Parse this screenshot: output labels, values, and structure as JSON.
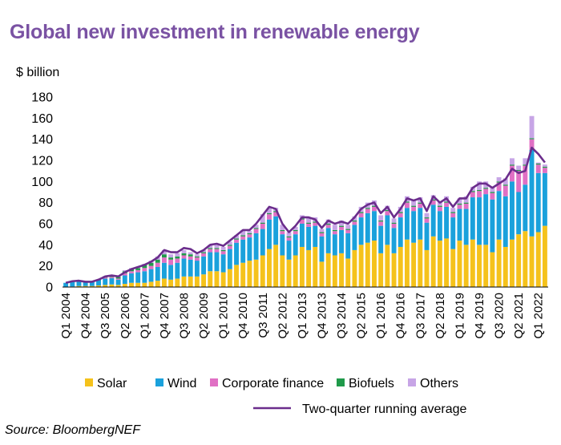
{
  "chart_data": {
    "type": "bar",
    "stacked": true,
    "title": "Global new investment in renewable energy",
    "ylabel": "$ billion",
    "ylim": [
      0,
      180
    ],
    "yticks": [
      0,
      20,
      40,
      60,
      80,
      100,
      120,
      140,
      160,
      180
    ],
    "grid": false,
    "legend_position": "bottom",
    "source": "Source: BloombergNEF",
    "xtick_labels": [
      "Q1 2004",
      "Q4 2004",
      "Q3 2005",
      "Q2 2006",
      "Q1 2007",
      "Q4 2007",
      "Q3 2008",
      "Q2 2009",
      "Q1 2010",
      "Q4 2010",
      "Q3 2011",
      "Q2 2012",
      "Q1 2013",
      "Q4 2013",
      "Q3 2014",
      "Q2 2015",
      "Q1 2016",
      "Q4 2016",
      "Q3 2017",
      "Q2 2018",
      "Q1 2019",
      "Q4 2019",
      "Q3 2020",
      "Q2 2021",
      "Q1 2022"
    ],
    "categories": [
      "Q1 2004",
      "Q2 2004",
      "Q3 2004",
      "Q4 2004",
      "Q1 2005",
      "Q2 2005",
      "Q3 2005",
      "Q4 2005",
      "Q1 2006",
      "Q2 2006",
      "Q3 2006",
      "Q4 2006",
      "Q1 2007",
      "Q2 2007",
      "Q3 2007",
      "Q4 2007",
      "Q1 2008",
      "Q2 2008",
      "Q3 2008",
      "Q4 2008",
      "Q1 2009",
      "Q2 2009",
      "Q3 2009",
      "Q4 2009",
      "Q1 2010",
      "Q2 2010",
      "Q3 2010",
      "Q4 2010",
      "Q1 2011",
      "Q2 2011",
      "Q3 2011",
      "Q4 2011",
      "Q1 2012",
      "Q2 2012",
      "Q3 2012",
      "Q4 2012",
      "Q1 2013",
      "Q2 2013",
      "Q3 2013",
      "Q4 2013",
      "Q1 2014",
      "Q2 2014",
      "Q3 2014",
      "Q4 2014",
      "Q1 2015",
      "Q2 2015",
      "Q3 2015",
      "Q4 2015",
      "Q1 2016",
      "Q2 2016",
      "Q3 2016",
      "Q4 2016",
      "Q1 2017",
      "Q2 2017",
      "Q3 2017",
      "Q4 2017",
      "Q1 2018",
      "Q2 2018",
      "Q3 2018",
      "Q4 2018",
      "Q1 2019",
      "Q2 2019",
      "Q3 2019",
      "Q4 2019",
      "Q1 2020",
      "Q2 2020",
      "Q3 2020",
      "Q4 2020",
      "Q1 2021",
      "Q2 2021",
      "Q3 2021",
      "Q4 2021",
      "Q1 2022",
      "Q2 2022"
    ],
    "series": [
      {
        "name": "Solar",
        "color": "#f5c21b",
        "values": [
          0,
          0.5,
          1,
          1,
          1,
          1.5,
          2,
          2.5,
          2,
          3,
          4,
          4,
          4,
          5,
          6,
          8,
          7,
          8,
          10,
          10,
          10,
          12,
          15,
          15,
          14,
          17,
          21,
          23,
          25,
          26,
          30,
          36,
          40,
          30,
          26,
          30,
          38,
          35,
          38,
          24,
          32,
          30,
          32,
          27,
          35,
          40,
          42,
          44,
          32,
          40,
          32,
          38,
          45,
          42,
          45,
          35,
          48,
          44,
          46,
          36,
          44,
          40,
          45,
          40,
          40,
          33,
          45,
          38,
          45,
          50,
          53,
          48,
          52,
          58
        ]
      },
      {
        "name": "Wind",
        "color": "#1aa1dc",
        "values": [
          4,
          5,
          4,
          4,
          4,
          5,
          6,
          6,
          5,
          8,
          9,
          10,
          11,
          12,
          13,
          15,
          14,
          15,
          17,
          16,
          15,
          17,
          18,
          18,
          17,
          19,
          21,
          22,
          22,
          25,
          25,
          28,
          27,
          20,
          18,
          20,
          22,
          22,
          20,
          24,
          24,
          20,
          22,
          24,
          24,
          26,
          28,
          28,
          26,
          28,
          24,
          28,
          30,
          30,
          30,
          26,
          30,
          28,
          30,
          30,
          30,
          34,
          40,
          45,
          48,
          50,
          46,
          48,
          55,
          40,
          44,
          82,
          56,
          50
        ]
      },
      {
        "name": "Corporate finance",
        "color": "#e070c4",
        "values": [
          0,
          0,
          0,
          0,
          0,
          0,
          1,
          1,
          1,
          2,
          2,
          2,
          3,
          3,
          4,
          5,
          5,
          4,
          3,
          3,
          3,
          3,
          3,
          3,
          3,
          3,
          3,
          3,
          3,
          4,
          5,
          5,
          4,
          3,
          3,
          3,
          4,
          3,
          3,
          3,
          3,
          3,
          3,
          3,
          3,
          4,
          4,
          4,
          4,
          4,
          4,
          4,
          5,
          4,
          4,
          4,
          4,
          4,
          4,
          4,
          4,
          5,
          5,
          6,
          5,
          6,
          8,
          10,
          15,
          20,
          18,
          10,
          8,
          5
        ]
      },
      {
        "name": "Biofuels",
        "color": "#1f9a4a",
        "values": [
          0,
          0,
          0,
          0,
          0,
          0.5,
          1,
          1,
          1.5,
          2,
          2,
          2,
          3,
          3,
          3,
          3,
          2,
          2,
          2,
          2,
          1,
          1,
          1,
          1,
          1,
          1,
          1,
          1,
          1,
          1,
          1,
          1,
          1,
          1,
          1,
          1,
          1,
          1,
          1,
          1,
          1,
          1,
          1,
          1,
          1,
          1,
          1,
          1,
          1,
          1,
          1,
          1,
          1,
          1,
          1,
          1,
          1,
          1,
          1,
          1,
          1,
          1,
          1,
          1,
          1,
          1,
          1,
          1,
          1,
          1,
          1,
          1,
          1,
          1
        ]
      },
      {
        "name": "Others",
        "color": "#c7a5e6",
        "values": [
          0,
          0,
          0,
          0,
          0,
          0,
          0,
          0,
          1,
          1,
          1,
          1,
          1,
          2,
          3,
          4,
          3,
          3,
          3,
          2,
          2,
          2,
          3,
          3,
          3,
          3,
          3,
          5,
          2,
          3,
          8,
          5,
          3,
          5,
          4,
          3,
          3,
          5,
          4,
          3,
          4,
          5,
          5,
          4,
          4,
          5,
          5,
          5,
          5,
          4,
          4,
          5,
          5,
          5,
          5,
          4,
          4,
          4,
          5,
          4,
          5,
          6,
          4,
          8,
          6,
          5,
          4,
          6,
          6,
          4,
          6,
          21,
          1,
          2
        ]
      }
    ],
    "running_average": {
      "name": "Two-quarter running average",
      "color": "#6b2d8c",
      "values": [
        4,
        5.5,
        6,
        5,
        5,
        7,
        10,
        11,
        10,
        14,
        17,
        19,
        21,
        24,
        28,
        35,
        33,
        33,
        37,
        36,
        32,
        35,
        40,
        41,
        39,
        44,
        49,
        54,
        54,
        60,
        68,
        76,
        74,
        60,
        52,
        58,
        66,
        66,
        64,
        56,
        63,
        60,
        62,
        60,
        66,
        74,
        78,
        80,
        70,
        76,
        66,
        74,
        84,
        82,
        84,
        72,
        86,
        80,
        84,
        76,
        84,
        84,
        94,
        98,
        98,
        94,
        98,
        102,
        112,
        108,
        110,
        132,
        126,
        118
      ]
    }
  }
}
